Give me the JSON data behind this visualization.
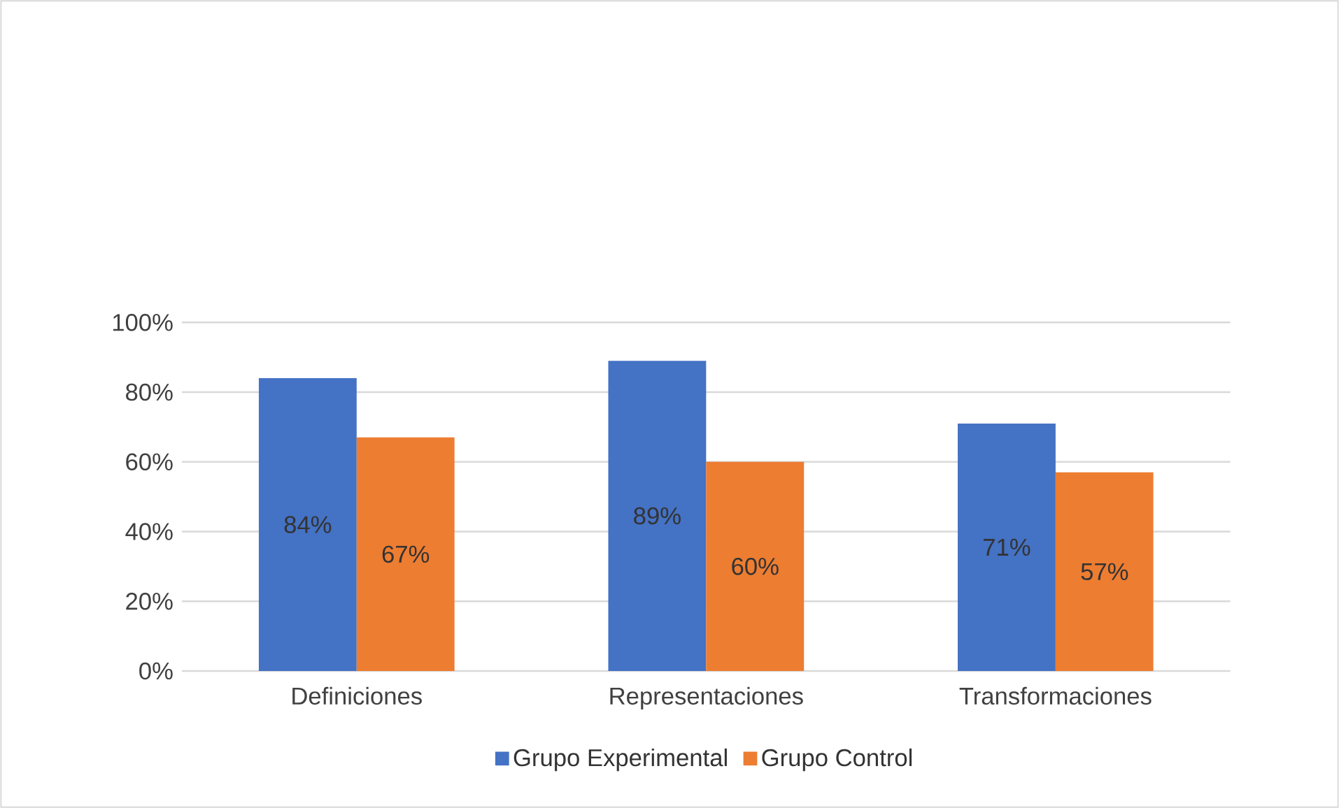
{
  "chart_data": {
    "type": "bar",
    "categories": [
      "Definiciones",
      "Representaciones",
      "Transformaciones"
    ],
    "series": [
      {
        "name": "Grupo Experimental",
        "color": "#4472c4",
        "values": [
          84,
          89,
          71
        ],
        "value_labels": [
          "84%",
          "89%",
          "71%"
        ]
      },
      {
        "name": "Grupo Control",
        "color": "#ed7d31",
        "values": [
          67,
          60,
          57
        ],
        "value_labels": [
          "67%",
          "60%",
          "57%"
        ]
      }
    ],
    "ylim": [
      0,
      100
    ],
    "yticks": [
      {
        "value": 0,
        "label": "0%"
      },
      {
        "value": 20,
        "label": "20%"
      },
      {
        "value": 40,
        "label": "40%"
      },
      {
        "value": 60,
        "label": "60%"
      },
      {
        "value": 80,
        "label": "80%"
      },
      {
        "value": 100,
        "label": "100%"
      }
    ],
    "grid": "y",
    "legend": "bottom"
  }
}
